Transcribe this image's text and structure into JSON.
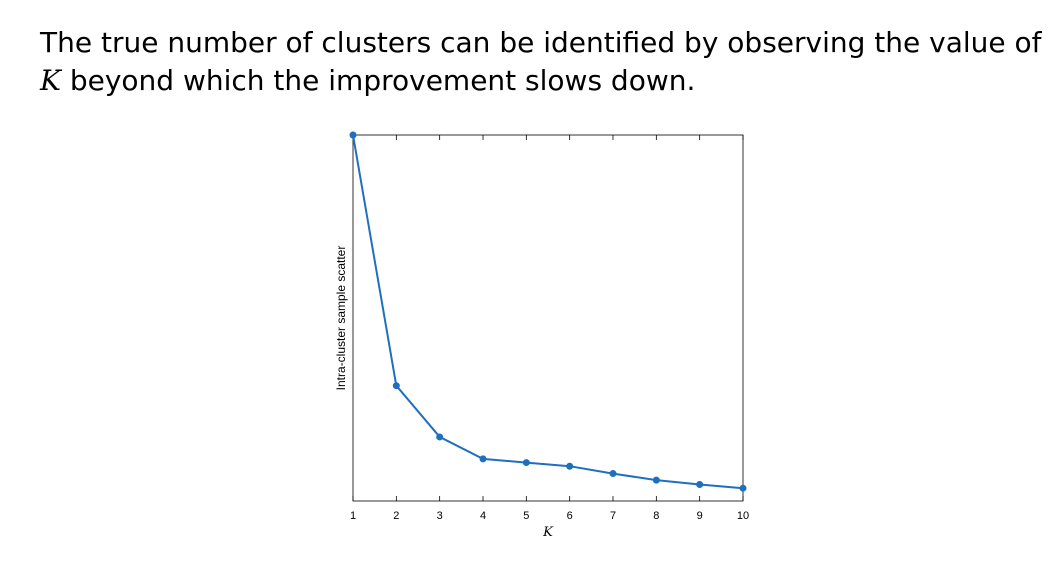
{
  "slide": {
    "line1": "The true number of clusters can be identified by observing the value of",
    "line2_var": "K",
    "line2_rest": " beyond which the improvement slows down."
  },
  "chart_data": {
    "type": "line",
    "x": [
      1,
      2,
      3,
      4,
      5,
      6,
      7,
      8,
      9,
      10
    ],
    "series": [
      {
        "values": [
          1.0,
          0.315,
          0.175,
          0.115,
          0.105,
          0.095,
          0.075,
          0.057,
          0.045,
          0.035
        ]
      }
    ],
    "xlabel": "K",
    "ylabel": "Intra-cluster sample scatter",
    "xticks": [
      "1",
      "2",
      "3",
      "4",
      "5",
      "6",
      "7",
      "8",
      "9",
      "10"
    ],
    "xlim": [
      1,
      10
    ],
    "ylim": [
      0,
      1
    ],
    "yticks_labeled": false,
    "grid": false,
    "line_color": "#1f6fbf",
    "marker": "circle"
  }
}
